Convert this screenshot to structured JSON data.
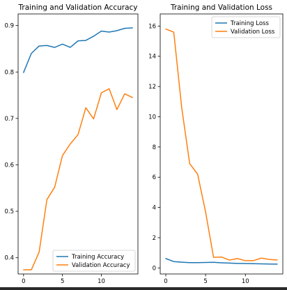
{
  "chart_data": [
    {
      "type": "line",
      "title": "Training and Validation Accuracy",
      "xlabel": "",
      "ylabel": "",
      "xlim": [
        -0.7,
        14.7
      ],
      "ylim": [
        0.365,
        0.925
      ],
      "xticks": [
        0,
        5,
        10
      ],
      "yticks": [
        0.4,
        0.5,
        0.6,
        0.7,
        0.8,
        0.9
      ],
      "x": [
        0,
        1,
        2,
        3,
        4,
        5,
        6,
        7,
        8,
        9,
        10,
        11,
        12,
        13,
        14
      ],
      "series": [
        {
          "name": "Training Accuracy",
          "color": "#1f77b4",
          "values": [
            0.799,
            0.84,
            0.856,
            0.857,
            0.853,
            0.86,
            0.853,
            0.867,
            0.868,
            0.877,
            0.888,
            0.886,
            0.889,
            0.894,
            0.895
          ]
        },
        {
          "name": "Validation Accuracy",
          "color": "#ff7f0e",
          "values": [
            0.374,
            0.374,
            0.412,
            0.525,
            0.552,
            0.62,
            0.645,
            0.665,
            0.723,
            0.699,
            0.755,
            0.764,
            0.719,
            0.753,
            0.745
          ]
        }
      ],
      "legend": "lower-right",
      "grid": false
    },
    {
      "type": "line",
      "title": "Training and Validation Loss",
      "xlabel": "",
      "ylabel": "",
      "xlim": [
        -0.7,
        14.7
      ],
      "ylim": [
        -0.4,
        16.8
      ],
      "xticks": [
        0,
        5,
        10
      ],
      "yticks": [
        0,
        2,
        4,
        6,
        8,
        10,
        12,
        14,
        16
      ],
      "x": [
        0,
        1,
        2,
        3,
        4,
        5,
        6,
        7,
        8,
        9,
        10,
        11,
        12,
        13,
        14
      ],
      "series": [
        {
          "name": "Training Loss",
          "color": "#1f77b4",
          "values": [
            0.62,
            0.42,
            0.38,
            0.35,
            0.35,
            0.36,
            0.37,
            0.34,
            0.32,
            0.3,
            0.29,
            0.28,
            0.27,
            0.26,
            0.25
          ]
        },
        {
          "name": "Validation Loss",
          "color": "#ff7f0e",
          "values": [
            15.8,
            15.6,
            10.6,
            6.9,
            6.2,
            3.7,
            0.7,
            0.72,
            0.52,
            0.62,
            0.48,
            0.48,
            0.65,
            0.56,
            0.52
          ]
        }
      ],
      "legend": "upper-right",
      "grid": false
    }
  ]
}
